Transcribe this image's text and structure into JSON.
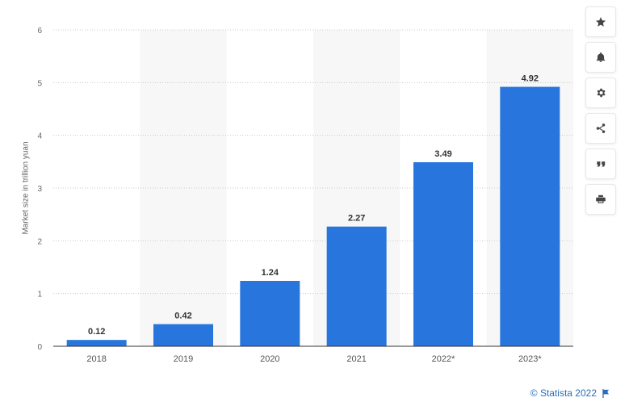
{
  "chart_data": {
    "type": "bar",
    "categories": [
      "2018",
      "2019",
      "2020",
      "2021",
      "2022*",
      "2023*"
    ],
    "values": [
      0.12,
      0.42,
      1.24,
      2.27,
      3.49,
      4.92
    ],
    "value_labels": [
      "0.12",
      "0.42",
      "1.24",
      "2.27",
      "3.49",
      "4.92"
    ],
    "ylabel": "Market size in trillion yuan",
    "ylim": [
      0,
      6
    ],
    "yticks": [
      "0",
      "1",
      "2",
      "3",
      "4",
      "5",
      "6"
    ],
    "grid": true,
    "bar_color": "#2876dd",
    "band_color": "#f7f7f7"
  },
  "toolbar": {
    "icons": [
      "star-icon",
      "bell-icon",
      "gear-icon",
      "share-icon",
      "quote-icon",
      "print-icon"
    ]
  },
  "credits": {
    "text": "© Statista 2022",
    "color": "#2a6ebb"
  }
}
